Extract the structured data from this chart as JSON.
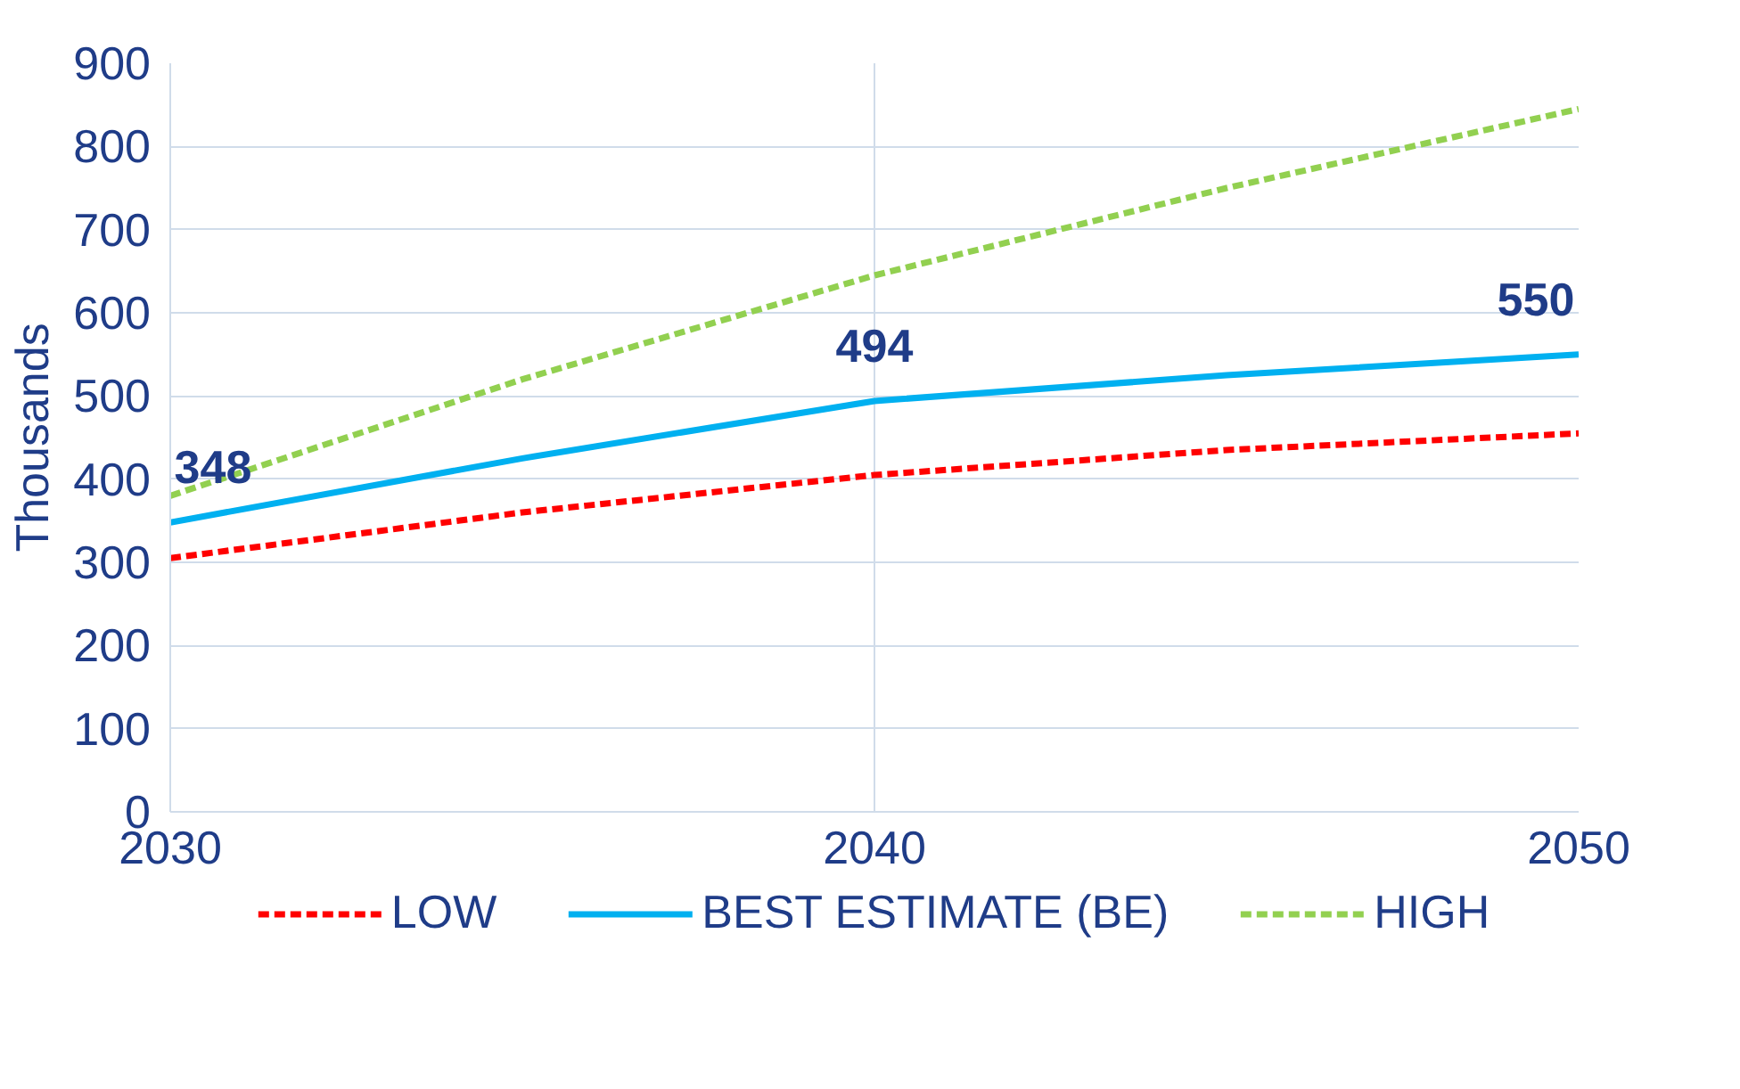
{
  "chart_data": {
    "type": "line",
    "ylabel": "Thousands",
    "x": [
      2030,
      2035,
      2040,
      2045,
      2050
    ],
    "xlim": [
      2030,
      2050
    ],
    "xticks": [
      2030,
      2040,
      2050
    ],
    "ylim": [
      0,
      900
    ],
    "yticks": [
      0,
      100,
      200,
      300,
      400,
      500,
      600,
      700,
      800,
      900
    ],
    "grid": true,
    "legend": "bottom",
    "marker": "none",
    "series": [
      {
        "name": "LOW",
        "color": "#ff0000",
        "line_style": "dashed",
        "values": [
          305,
          360,
          405,
          435,
          455
        ]
      },
      {
        "name": "BEST ESTIMATE (BE)",
        "color": "#00b0f0",
        "line_style": "solid",
        "values": [
          348,
          425,
          494,
          525,
          550
        ],
        "value_labels": [
          "348",
          null,
          "494",
          null,
          "550"
        ]
      },
      {
        "name": "HIGH",
        "color": "#92d050",
        "line_style": "dashed",
        "values": [
          380,
          520,
          645,
          750,
          845
        ]
      }
    ]
  }
}
